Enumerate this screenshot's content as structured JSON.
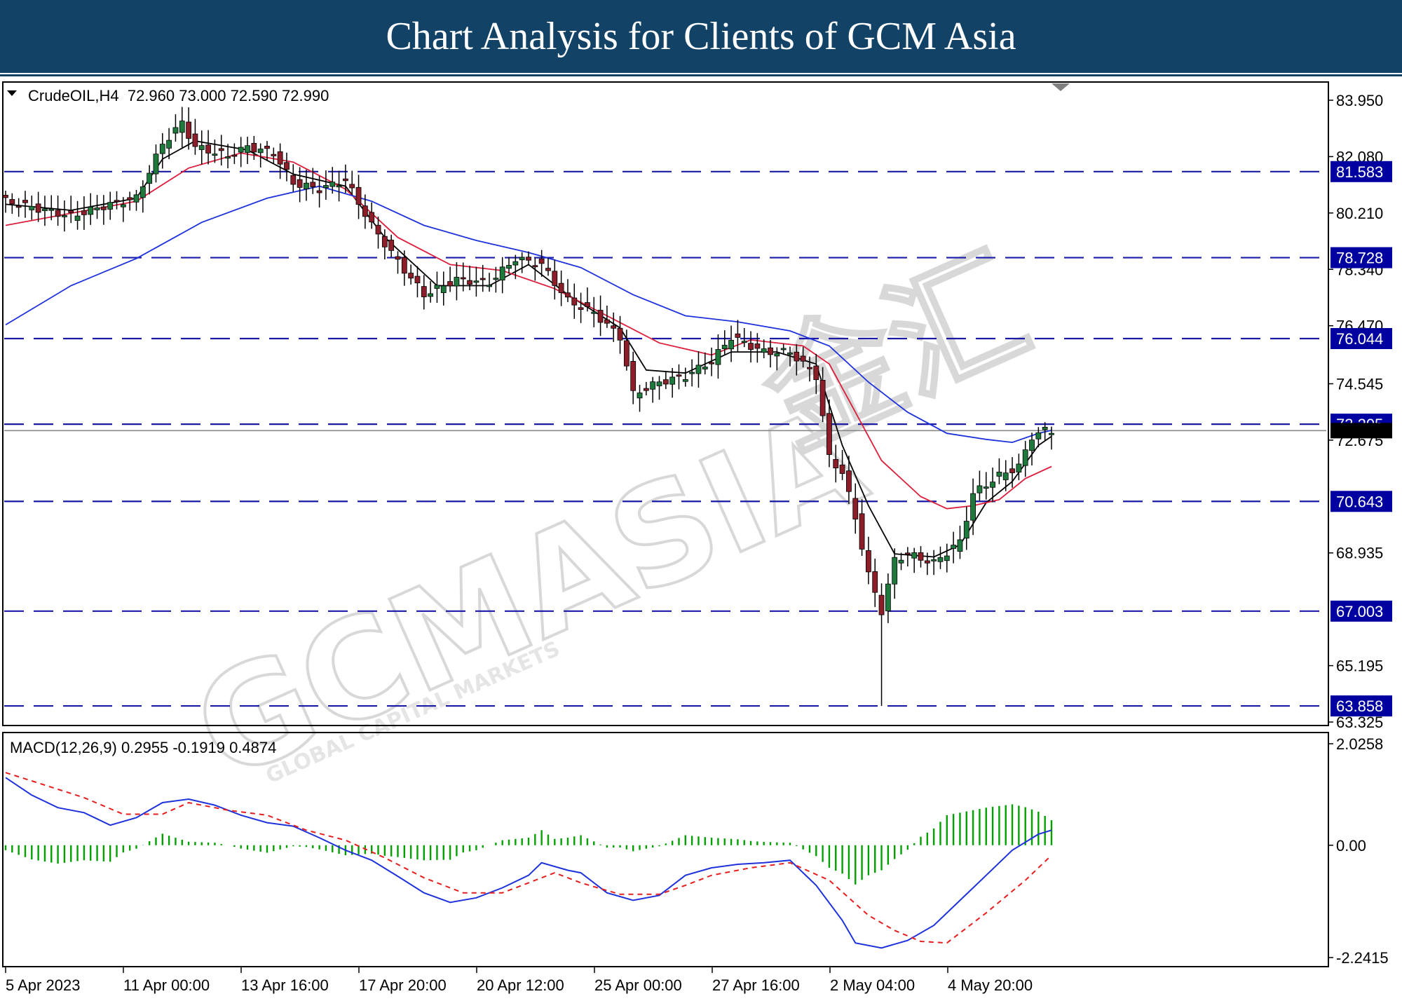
{
  "banner": {
    "title": "Chart Analysis for Clients of GCM Asia"
  },
  "colors": {
    "banner": "#124266",
    "level_line": "#1a1aa6",
    "label_bg": "#0000a0",
    "sma_fast": "#000000",
    "sma_mid": "#dc1e3c",
    "sma_slow": "#1e32dc",
    "macd_line": "#1e32dc",
    "signal_line": "#e61e1e",
    "histogram": "#00a000",
    "bull_candle": "#1e7a3c",
    "bear_candle": "#8c1e2a"
  },
  "watermark": {
    "brand": "GCMASIA",
    "subtitle": "GLOBAL CAPITAL MARKETS",
    "cjk": "金汇"
  },
  "chart_data": [
    {
      "type": "candlestick",
      "symbol": "CrudeOIL,H4",
      "ohlc_header": {
        "open": "72.960",
        "high": "73.000",
        "low": "72.590",
        "close": "72.990"
      },
      "header_text": "CrudeOIL,H4  72.960 73.000 72.590 72.990",
      "ylim": [
        63.325,
        83.95
      ],
      "y_ticks": [
        "83.950",
        "82.080",
        "80.210",
        "78.340",
        "76.470",
        "74.545",
        "72.675",
        "70.643",
        "68.935",
        "67.003",
        "65.195",
        "63.325"
      ],
      "y_ticks_plain": [
        "83.950",
        "82.080",
        "80.210",
        "78.340",
        "76.470",
        "74.545",
        "72.675",
        "68.935",
        "65.195",
        "63.325"
      ],
      "levels": [
        "81.583",
        "78.728",
        "76.044",
        "73.205",
        "70.643",
        "67.003",
        "63.858"
      ],
      "current_price": 72.99,
      "x_labels": [
        "5 Apr 2023",
        "11 Apr 00:00",
        "13 Apr 16:00",
        "17 Apr 20:00",
        "20 Apr 12:00",
        "25 Apr 00:00",
        "27 Apr 16:00",
        "2 May 04:00",
        "4 May 20:00"
      ],
      "price_path": [
        [
          0,
          80.6
        ],
        [
          10,
          80.1
        ],
        [
          16,
          80.5
        ],
        [
          20,
          80.7
        ],
        [
          24,
          82.5
        ],
        [
          27,
          83.2
        ],
        [
          29,
          82.4
        ],
        [
          34,
          82.1
        ],
        [
          37,
          82.4
        ],
        [
          41,
          82.2
        ],
        [
          44,
          81.2
        ],
        [
          48,
          81.0
        ],
        [
          52,
          81.3
        ],
        [
          56,
          79.8
        ],
        [
          60,
          78.6
        ],
        [
          64,
          77.5
        ],
        [
          69,
          78.0
        ],
        [
          74,
          77.9
        ],
        [
          78,
          78.7
        ],
        [
          82,
          78.5
        ],
        [
          86,
          77.3
        ],
        [
          90,
          76.9
        ],
        [
          94,
          76.1
        ],
        [
          96,
          74.2
        ],
        [
          100,
          74.6
        ],
        [
          104,
          74.8
        ],
        [
          108,
          75.3
        ],
        [
          111,
          76.1
        ],
        [
          116,
          75.6
        ],
        [
          120,
          75.6
        ],
        [
          124,
          74.8
        ],
        [
          126,
          72.1
        ],
        [
          128,
          71.6
        ],
        [
          130,
          70.1
        ],
        [
          132,
          68.2
        ],
        [
          134,
          67.0
        ],
        [
          136,
          68.7
        ],
        [
          138,
          68.9
        ],
        [
          142,
          68.6
        ],
        [
          146,
          69.3
        ],
        [
          148,
          70.9
        ],
        [
          152,
          71.5
        ],
        [
          155,
          71.8
        ],
        [
          157,
          72.8
        ],
        [
          159,
          73.0
        ],
        [
          160,
          72.99
        ]
      ],
      "moving_averages": [
        {
          "name": "fast",
          "points": [
            [
              0,
              80.5
            ],
            [
              10,
              80.3
            ],
            [
              20,
              80.7
            ],
            [
              24,
              82.0
            ],
            [
              29,
              82.6
            ],
            [
              37,
              82.3
            ],
            [
              44,
              81.5
            ],
            [
              52,
              81.1
            ],
            [
              58,
              79.4
            ],
            [
              66,
              77.8
            ],
            [
              74,
              77.8
            ],
            [
              80,
              78.5
            ],
            [
              86,
              77.5
            ],
            [
              94,
              76.4
            ],
            [
              98,
              75.0
            ],
            [
              104,
              74.9
            ],
            [
              111,
              75.6
            ],
            [
              118,
              75.6
            ],
            [
              124,
              75.2
            ],
            [
              128,
              72.5
            ],
            [
              132,
              70.5
            ],
            [
              136,
              68.9
            ],
            [
              142,
              68.8
            ],
            [
              146,
              69.2
            ],
            [
              150,
              70.6
            ],
            [
              154,
              71.3
            ],
            [
              158,
              72.5
            ],
            [
              160,
              72.8
            ]
          ]
        },
        {
          "name": "mid",
          "points": [
            [
              0,
              79.8
            ],
            [
              10,
              80.2
            ],
            [
              20,
              80.6
            ],
            [
              28,
              81.7
            ],
            [
              36,
              82.2
            ],
            [
              44,
              81.9
            ],
            [
              52,
              81.0
            ],
            [
              60,
              79.4
            ],
            [
              68,
              78.5
            ],
            [
              76,
              78.3
            ],
            [
              84,
              77.7
            ],
            [
              92,
              76.8
            ],
            [
              100,
              75.9
            ],
            [
              108,
              75.5
            ],
            [
              114,
              76.0
            ],
            [
              122,
              75.8
            ],
            [
              126,
              75.2
            ],
            [
              130,
              73.6
            ],
            [
              134,
              72.0
            ],
            [
              140,
              70.8
            ],
            [
              144,
              70.4
            ],
            [
              148,
              70.5
            ],
            [
              152,
              70.7
            ],
            [
              156,
              71.4
            ],
            [
              160,
              71.8
            ]
          ]
        },
        {
          "name": "slow",
          "points": [
            [
              0,
              76.5
            ],
            [
              10,
              77.8
            ],
            [
              20,
              78.7
            ],
            [
              30,
              79.9
            ],
            [
              40,
              80.7
            ],
            [
              48,
              81.1
            ],
            [
              56,
              80.6
            ],
            [
              64,
              79.8
            ],
            [
              72,
              79.3
            ],
            [
              80,
              78.9
            ],
            [
              88,
              78.4
            ],
            [
              96,
              77.5
            ],
            [
              104,
              76.8
            ],
            [
              112,
              76.6
            ],
            [
              120,
              76.3
            ],
            [
              126,
              75.8
            ],
            [
              132,
              74.6
            ],
            [
              138,
              73.6
            ],
            [
              144,
              72.9
            ],
            [
              150,
              72.7
            ],
            [
              154,
              72.6
            ],
            [
              158,
              72.9
            ],
            [
              160,
              73.0
            ]
          ]
        }
      ]
    },
    {
      "type": "macd",
      "header_text": "MACD(12,26,9) 0.2955 -0.1919 0.4874",
      "params": "12,26,9",
      "values": {
        "main": 0.2955,
        "signal": -0.1919,
        "histogram": 0.4874
      },
      "ylim": [
        -2.2415,
        2.0258
      ],
      "y_ticks": [
        "2.0258",
        "0.00",
        "-2.2415"
      ],
      "macd_line": [
        [
          0,
          1.35
        ],
        [
          4,
          1.0
        ],
        [
          8,
          0.75
        ],
        [
          12,
          0.65
        ],
        [
          16,
          0.4
        ],
        [
          20,
          0.55
        ],
        [
          24,
          0.85
        ],
        [
          28,
          0.92
        ],
        [
          32,
          0.8
        ],
        [
          36,
          0.6
        ],
        [
          40,
          0.45
        ],
        [
          44,
          0.38
        ],
        [
          48,
          0.15
        ],
        [
          52,
          -0.1
        ],
        [
          56,
          -0.3
        ],
        [
          60,
          -0.62
        ],
        [
          64,
          -0.95
        ],
        [
          68,
          -1.14
        ],
        [
          72,
          -1.05
        ],
        [
          76,
          -0.85
        ],
        [
          80,
          -0.6
        ],
        [
          82,
          -0.35
        ],
        [
          86,
          -0.5
        ],
        [
          88,
          -0.55
        ],
        [
          92,
          -0.95
        ],
        [
          96,
          -1.1
        ],
        [
          100,
          -1.0
        ],
        [
          104,
          -0.6
        ],
        [
          108,
          -0.45
        ],
        [
          112,
          -0.38
        ],
        [
          116,
          -0.35
        ],
        [
          120,
          -0.3
        ],
        [
          124,
          -0.8
        ],
        [
          128,
          -1.5
        ],
        [
          130,
          -1.95
        ],
        [
          134,
          -2.05
        ],
        [
          138,
          -1.9
        ],
        [
          142,
          -1.6
        ],
        [
          146,
          -1.1
        ],
        [
          150,
          -0.6
        ],
        [
          154,
          -0.1
        ],
        [
          158,
          0.22
        ],
        [
          160,
          0.3
        ]
      ],
      "signal_line": [
        [
          0,
          1.45
        ],
        [
          6,
          1.2
        ],
        [
          12,
          0.95
        ],
        [
          18,
          0.62
        ],
        [
          24,
          0.62
        ],
        [
          28,
          0.85
        ],
        [
          34,
          0.7
        ],
        [
          40,
          0.6
        ],
        [
          46,
          0.3
        ],
        [
          52,
          0.1
        ],
        [
          58,
          -0.25
        ],
        [
          64,
          -0.65
        ],
        [
          70,
          -0.95
        ],
        [
          76,
          -0.95
        ],
        [
          80,
          -0.75
        ],
        [
          84,
          -0.55
        ],
        [
          88,
          -0.75
        ],
        [
          94,
          -0.98
        ],
        [
          100,
          -0.98
        ],
        [
          104,
          -0.8
        ],
        [
          108,
          -0.6
        ],
        [
          114,
          -0.45
        ],
        [
          120,
          -0.35
        ],
        [
          126,
          -0.7
        ],
        [
          132,
          -1.4
        ],
        [
          136,
          -1.7
        ],
        [
          140,
          -1.92
        ],
        [
          144,
          -1.95
        ],
        [
          150,
          -1.35
        ],
        [
          156,
          -0.7
        ],
        [
          160,
          -0.2
        ]
      ]
    }
  ]
}
